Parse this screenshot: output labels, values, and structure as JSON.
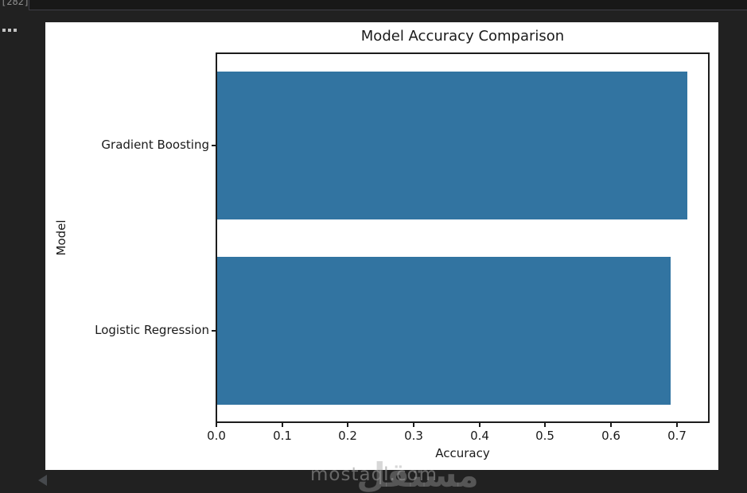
{
  "notebook": {
    "execution_count": "[282]"
  },
  "chart_data": {
    "type": "bar",
    "orientation": "horizontal",
    "title": "Model Accuracy Comparison",
    "categories": [
      "Gradient Boosting",
      "Logistic Regression"
    ],
    "values": [
      0.715,
      0.689
    ],
    "xlabel": "Accuracy",
    "ylabel": "Model",
    "xlim": [
      0,
      0.751
    ],
    "xticks": [
      0.0,
      0.1,
      0.2,
      0.3,
      0.4,
      0.5,
      0.6,
      0.7
    ],
    "bar_color": "#3274a1",
    "grid": false,
    "legend": null
  },
  "watermark": {
    "logo_text": "مستقل",
    "site_text": "mostaql.com"
  },
  "colors": {
    "page_background": "#212121",
    "figure_background": "#ffffff",
    "bar": "#3274a1",
    "chart_text": "#1a1a1a",
    "cell_border": "#3f3f46"
  }
}
